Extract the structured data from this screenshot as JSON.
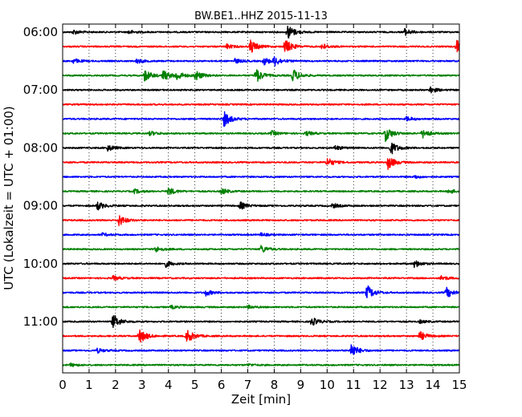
{
  "chart_data": {
    "type": "line",
    "title": "BW.BE1..HHZ 2015-11-13",
    "xlabel": "Zeit  [min]",
    "ylabel": "UTC (Lokalzeit = UTC + 01:00)",
    "xlim": [
      0,
      15
    ],
    "x_ticks": [
      "0",
      "1",
      "2",
      "3",
      "4",
      "5",
      "6",
      "7",
      "8",
      "9",
      "10",
      "11",
      "12",
      "13",
      "14",
      "15"
    ],
    "y_ticks": [
      "06:00",
      "07:00",
      "08:00",
      "09:00",
      "10:00",
      "11:00"
    ],
    "grid": true,
    "trace_colors": [
      "#000000",
      "#ff0000",
      "#0000ff",
      "#008000"
    ],
    "trace_interval_minutes": 15,
    "traces": [
      {
        "start": "06:00",
        "color": "#000000",
        "events": [
          [
            0.4,
            0.3
          ],
          [
            2.5,
            0.25
          ],
          [
            8.5,
            1.0
          ],
          [
            12.9,
            0.5
          ]
        ]
      },
      {
        "start": "06:15",
        "color": "#ff0000",
        "events": [
          [
            6.2,
            0.3
          ],
          [
            7.1,
            0.9
          ],
          [
            8.4,
            1.0
          ],
          [
            9.8,
            0.4
          ],
          [
            14.9,
            0.9
          ]
        ]
      },
      {
        "start": "06:30",
        "color": "#0000ff",
        "events": [
          [
            0.4,
            0.3
          ],
          [
            2.8,
            0.3
          ],
          [
            6.5,
            0.3
          ],
          [
            7.6,
            0.5
          ],
          [
            8.0,
            0.6
          ]
        ]
      },
      {
        "start": "06:45",
        "color": "#008000",
        "events": [
          [
            3.1,
            0.8
          ],
          [
            3.8,
            0.7
          ],
          [
            4.3,
            0.6
          ],
          [
            5.0,
            0.7
          ],
          [
            7.3,
            1.0
          ],
          [
            8.7,
            0.9
          ]
        ]
      },
      {
        "start": "07:00",
        "color": "#000000",
        "events": [
          [
            13.9,
            0.4
          ]
        ]
      },
      {
        "start": "07:15",
        "color": "#ff0000",
        "events": []
      },
      {
        "start": "07:30",
        "color": "#0000ff",
        "events": [
          [
            6.1,
            1.0
          ],
          [
            13.0,
            0.3
          ]
        ]
      },
      {
        "start": "07:45",
        "color": "#008000",
        "events": [
          [
            3.3,
            0.3
          ],
          [
            7.9,
            0.3
          ],
          [
            9.2,
            0.3
          ],
          [
            12.2,
            1.0
          ],
          [
            13.6,
            0.6
          ]
        ]
      },
      {
        "start": "08:00",
        "color": "#000000",
        "events": [
          [
            1.7,
            0.4
          ],
          [
            10.3,
            0.3
          ],
          [
            12.4,
            0.9
          ]
        ]
      },
      {
        "start": "08:15",
        "color": "#ff0000",
        "events": [
          [
            10.0,
            0.6
          ],
          [
            12.3,
            0.9
          ]
        ]
      },
      {
        "start": "08:30",
        "color": "#0000ff",
        "events": [
          [
            13.3,
            0.2
          ]
        ]
      },
      {
        "start": "08:45",
        "color": "#008000",
        "events": [
          [
            2.7,
            0.3
          ],
          [
            4.0,
            0.5
          ],
          [
            6.0,
            0.4
          ],
          [
            14.6,
            0.3
          ]
        ]
      },
      {
        "start": "09:00",
        "color": "#000000",
        "events": [
          [
            1.3,
            0.6
          ],
          [
            6.7,
            0.5
          ],
          [
            10.2,
            0.3
          ]
        ]
      },
      {
        "start": "09:15",
        "color": "#ff0000",
        "events": [
          [
            2.1,
            0.8
          ]
        ]
      },
      {
        "start": "09:30",
        "color": "#0000ff",
        "events": [
          [
            1.5,
            0.2
          ],
          [
            7.5,
            0.2
          ]
        ]
      },
      {
        "start": "09:45",
        "color": "#008000",
        "events": [
          [
            3.5,
            0.4
          ],
          [
            7.5,
            0.5
          ]
        ]
      },
      {
        "start": "10:00",
        "color": "#000000",
        "events": [
          [
            3.9,
            0.4
          ],
          [
            13.3,
            0.5
          ]
        ]
      },
      {
        "start": "10:15",
        "color": "#ff0000",
        "events": [
          [
            1.9,
            0.3
          ],
          [
            14.3,
            0.3
          ]
        ]
      },
      {
        "start": "10:30",
        "color": "#0000ff",
        "events": [
          [
            5.4,
            0.4
          ],
          [
            11.5,
            1.0
          ],
          [
            14.5,
            0.7
          ]
        ]
      },
      {
        "start": "10:45",
        "color": "#008000",
        "events": [
          [
            4.1,
            0.2
          ],
          [
            7.0,
            0.2
          ]
        ]
      },
      {
        "start": "11:00",
        "color": "#000000",
        "events": [
          [
            1.9,
            1.0
          ],
          [
            9.4,
            0.6
          ],
          [
            13.5,
            0.2
          ]
        ]
      },
      {
        "start": "11:15",
        "color": "#ff0000",
        "events": [
          [
            2.9,
            1.0
          ],
          [
            4.7,
            0.9
          ],
          [
            13.5,
            0.6
          ]
        ]
      },
      {
        "start": "11:30",
        "color": "#0000ff",
        "events": [
          [
            1.3,
            0.3
          ],
          [
            10.9,
            1.0
          ]
        ]
      },
      {
        "start": "11:45",
        "color": "#008000",
        "events": [
          [
            0.3,
            0.2
          ],
          [
            7.0,
            0.15
          ]
        ]
      }
    ]
  }
}
